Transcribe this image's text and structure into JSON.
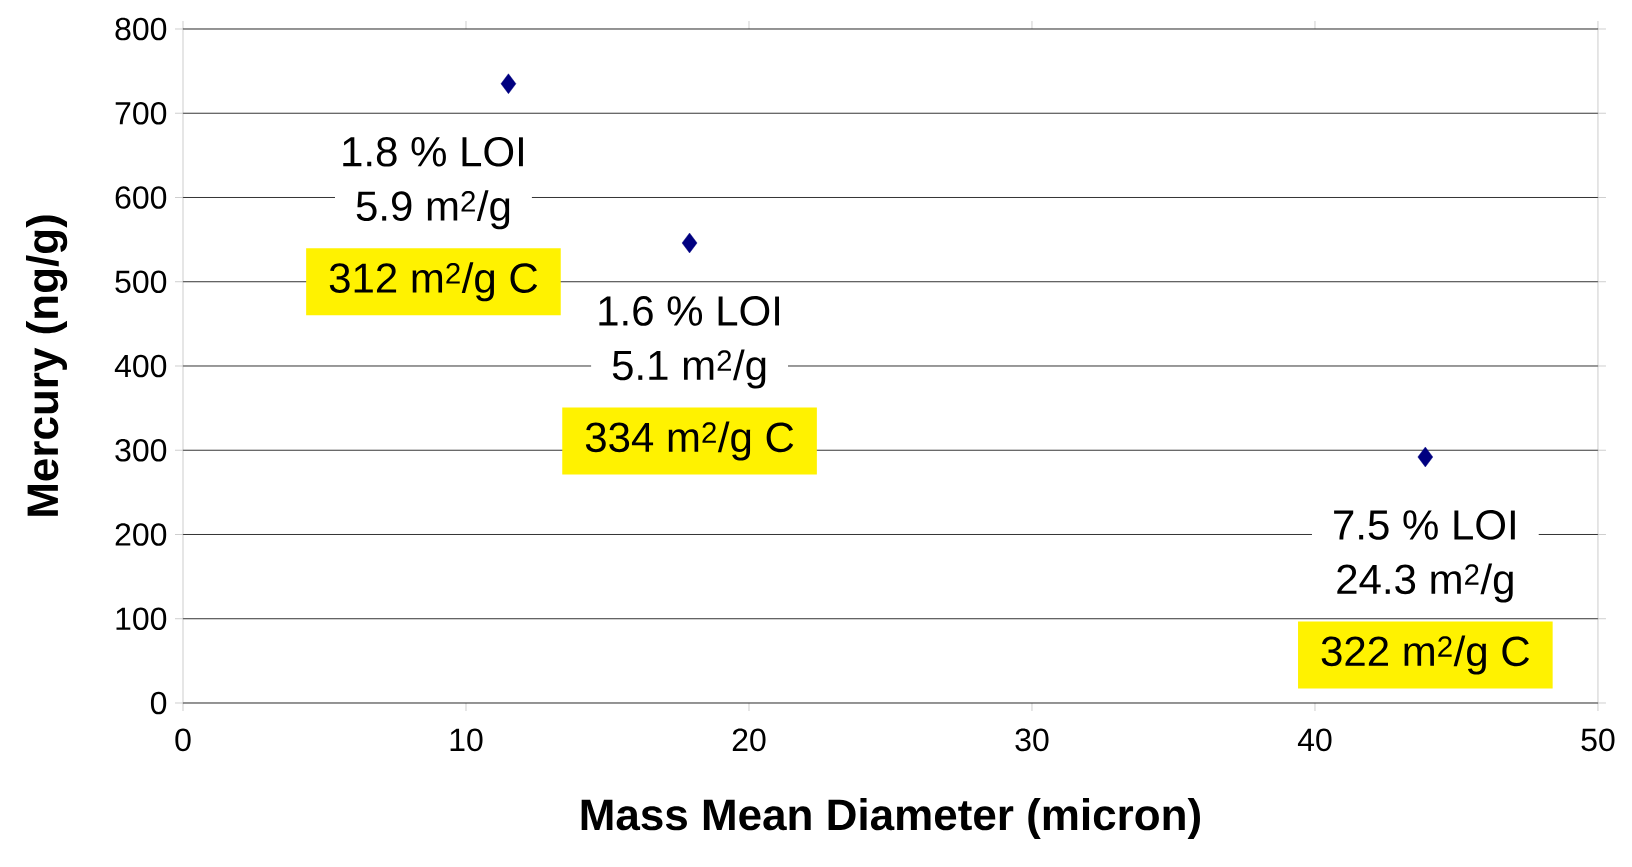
{
  "chart_data": {
    "type": "scatter",
    "xlabel": "Mass Mean Diameter (micron)",
    "ylabel": "Mercury (ng/g)",
    "x": [
      11.5,
      17.9,
      43.9
    ],
    "values": [
      735,
      546,
      292
    ],
    "color": "#000080",
    "marker": "diamond",
    "grid": "y",
    "xlim": [
      0,
      50
    ],
    "ylim": [
      0,
      800
    ],
    "xticks": [
      0,
      10,
      20,
      30,
      40,
      50
    ],
    "yticks": [
      0,
      100,
      200,
      300,
      400,
      500,
      600,
      700,
      800
    ],
    "annotations": [
      "1.8 % LOI",
      "5.9 m$^{2}$/g",
      "312 m$^{2}$/g C",
      "1.6 % LOI",
      "5.1 m$^{2}$/g",
      "334 m$^{2}$/g C",
      "7.5 % LOI",
      "24.3 m$^{2}$/g",
      "322 m$^{2}$/g C"
    ]
  }
}
